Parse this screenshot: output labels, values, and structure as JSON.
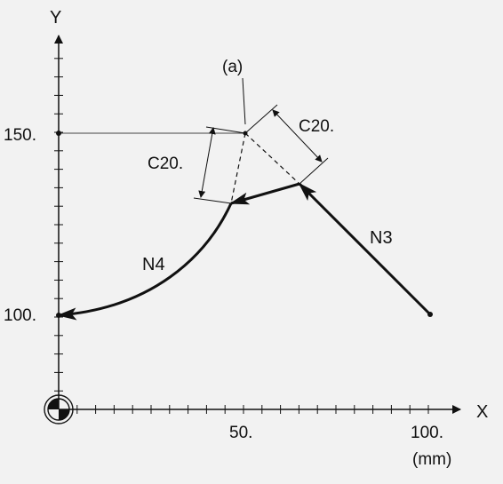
{
  "axes": {
    "x_label": "X",
    "y_label": "Y",
    "unit": "(mm)",
    "x_ticks": [
      {
        "value": 50,
        "label": "50."
      },
      {
        "value": 100,
        "label": "100."
      }
    ],
    "y_ticks": [
      {
        "value": 100,
        "label": "100."
      },
      {
        "value": 150,
        "label": "150."
      }
    ]
  },
  "labels": {
    "corner_point": "(a)",
    "chamfer_vertical": "C20.",
    "chamfer_diagonal": "C20.",
    "block_n3": "N3",
    "block_n4": "N4"
  },
  "colors": {
    "background": "#f2f2f2",
    "line": "#111111",
    "thin_line": "#444444"
  }
}
